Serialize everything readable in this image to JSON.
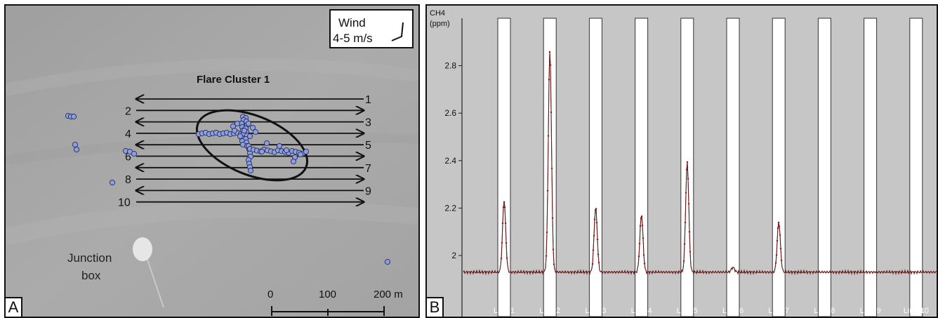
{
  "panel_a": {
    "letter": "A",
    "wind": {
      "title": "Wind",
      "speed": "4-5 m/s"
    },
    "cluster_label": "Flare Cluster 1",
    "junction_label_line1": "Junction",
    "junction_label_line2": "box",
    "scale_labels": [
      "0",
      "100",
      "200 m"
    ],
    "line_labels": [
      "1",
      "2",
      "3",
      "4",
      "5",
      "6",
      "7",
      "8",
      "9",
      "10"
    ],
    "colors": {
      "background": "#a9a9a9",
      "flare": "#8a9fe0",
      "arrow": "#111111"
    }
  },
  "chart_data": {
    "type": "line",
    "panel_letter": "B",
    "title": "",
    "ylabel": "CH4",
    "yunit": "(ppm)",
    "xlabel": "",
    "ylim": [
      1.8,
      3.0
    ],
    "yticks": [
      2,
      2.2,
      2.4,
      2.6,
      2.8
    ],
    "ytick_labels": [
      "2",
      "2.2",
      "2.4",
      "2.6",
      "2.8"
    ],
    "grid": false,
    "categories": [
      "Line 1",
      "Line 2",
      "Line 3",
      "Line 4",
      "Line 5",
      "Line 6",
      "Line 7",
      "Line 8",
      "Line 9",
      "Line 10"
    ],
    "baseline_ppm": 1.93,
    "peaks_ppm": [
      2.23,
      2.86,
      2.2,
      2.17,
      2.39,
      1.95,
      2.14,
      1.93,
      1.93,
      1.93
    ],
    "colors": {
      "background": "#c6c6c6",
      "series": "#8b1010",
      "band": "#ffffff"
    }
  }
}
